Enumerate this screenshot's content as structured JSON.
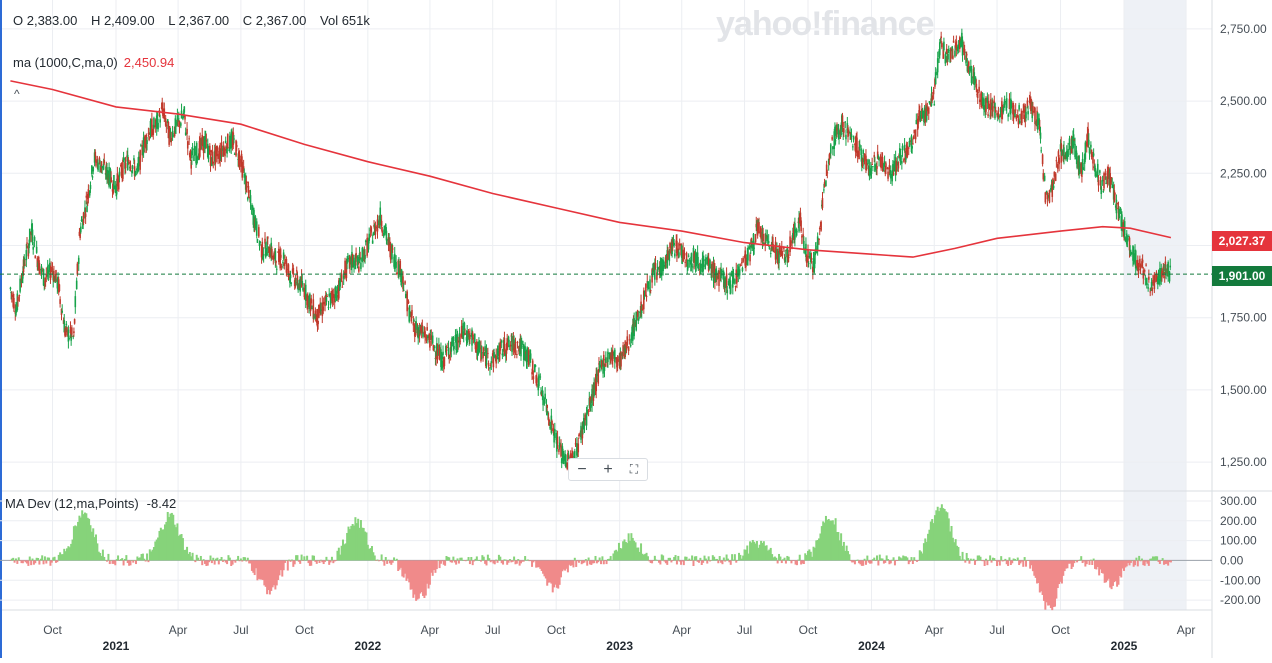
{
  "header": {
    "open": "O 2,383.00",
    "high": "H 2,409.00",
    "low": "L 2,367.00",
    "close": "C 2,367.00",
    "volume": "Vol 651k"
  },
  "watermark": "yahoo!finance",
  "ma_indicator": {
    "label": "ma (1000,C,ma,0)",
    "value": "2,450.94"
  },
  "madev_indicator": {
    "label": "MA Dev (12,ma,Points)",
    "value": "-8.42"
  },
  "badges": {
    "ma_value": "2,027.37",
    "last_close": "1,901.00"
  },
  "zoom_controls": {
    "zoom_out": "−",
    "zoom_in": "+",
    "fullscreen": "⛶"
  },
  "colors": {
    "up": "#17a34a",
    "down": "#c0392b",
    "ma_line": "#e5343c",
    "close_line": "#137a3c",
    "dev_up": "#86d37a",
    "dev_down": "#f08a8a",
    "shade": "#eef1f6"
  },
  "chart_data": [
    {
      "type": "line",
      "chart": "price",
      "x_unit": "date",
      "ylim": [
        1150,
        2850
      ],
      "yticks": [
        1250,
        1500,
        1750,
        2000,
        2250,
        2500,
        2750
      ],
      "ytick_labels": [
        "1,250.00",
        "1,500.00",
        "1,750.00",
        "",
        "2,250.00",
        "2,500.00",
        "2,750.00"
      ],
      "x_tick_labels": [
        "Oct",
        "Apr",
        "Jul",
        "Oct",
        "Apr",
        "Jul",
        "Oct",
        "Apr",
        "Jul",
        "Oct",
        "Apr",
        "Jul",
        "Oct",
        "Apr"
      ],
      "x_tick_dates": [
        "2020-10-01",
        "2021-04-01",
        "2021-07-01",
        "2021-10-01",
        "2022-04-01",
        "2022-07-01",
        "2022-10-01",
        "2023-04-01",
        "2023-07-01",
        "2023-10-01",
        "2024-04-01",
        "2024-07-01",
        "2024-10-01",
        "2025-04-01"
      ],
      "year_labels": [
        "2021",
        "2022",
        "2023",
        "2024",
        "2025"
      ],
      "year_dates": [
        "2021-01-01",
        "2022-01-01",
        "2023-01-01",
        "2024-01-01",
        "2025-01-01"
      ],
      "grid": true,
      "last_close": 1901,
      "series": [
        {
          "role": "price",
          "points": [
            [
              "2020-08-01",
              1850
            ],
            [
              "2020-08-10",
              1780
            ],
            [
              "2020-08-20",
              1920
            ],
            [
              "2020-09-01",
              2050
            ],
            [
              "2020-09-10",
              1950
            ],
            [
              "2020-09-20",
              1880
            ],
            [
              "2020-10-01",
              1920
            ],
            [
              "2020-10-10",
              1860
            ],
            [
              "2020-10-20",
              1700
            ],
            [
              "2020-11-01",
              1680
            ],
            [
              "2020-11-10",
              2050
            ],
            [
              "2020-11-20",
              2150
            ],
            [
              "2020-12-01",
              2300
            ],
            [
              "2020-12-10",
              2280
            ],
            [
              "2020-12-20",
              2250
            ],
            [
              "2021-01-01",
              2200
            ],
            [
              "2021-01-10",
              2260
            ],
            [
              "2021-01-20",
              2300
            ],
            [
              "2021-02-01",
              2250
            ],
            [
              "2021-02-10",
              2350
            ],
            [
              "2021-02-20",
              2400
            ],
            [
              "2021-03-01",
              2420
            ],
            [
              "2021-03-10",
              2470
            ],
            [
              "2021-03-20",
              2380
            ],
            [
              "2021-04-01",
              2420
            ],
            [
              "2021-04-10",
              2450
            ],
            [
              "2021-04-20",
              2300
            ],
            [
              "2021-05-01",
              2330
            ],
            [
              "2021-05-10",
              2360
            ],
            [
              "2021-05-20",
              2300
            ],
            [
              "2021-06-01",
              2320
            ],
            [
              "2021-06-10",
              2350
            ],
            [
              "2021-06-20",
              2360
            ],
            [
              "2021-07-01",
              2300
            ],
            [
              "2021-07-10",
              2200
            ],
            [
              "2021-07-20",
              2100
            ],
            [
              "2021-08-01",
              1980
            ],
            [
              "2021-08-10",
              2000
            ],
            [
              "2021-08-20",
              1950
            ],
            [
              "2021-09-01",
              1960
            ],
            [
              "2021-09-10",
              1900
            ],
            [
              "2021-09-20",
              1880
            ],
            [
              "2021-10-01",
              1850
            ],
            [
              "2021-10-10",
              1800
            ],
            [
              "2021-10-20",
              1750
            ],
            [
              "2021-11-01",
              1800
            ],
            [
              "2021-11-10",
              1820
            ],
            [
              "2021-11-20",
              1850
            ],
            [
              "2021-12-01",
              1920
            ],
            [
              "2021-12-10",
              1950
            ],
            [
              "2021-12-20",
              1940
            ],
            [
              "2022-01-01",
              2000
            ],
            [
              "2022-01-10",
              2050
            ],
            [
              "2022-01-20",
              2100
            ],
            [
              "2022-02-01",
              2000
            ],
            [
              "2022-02-10",
              1950
            ],
            [
              "2022-02-20",
              1900
            ],
            [
              "2022-03-01",
              1780
            ],
            [
              "2022-03-10",
              1720
            ],
            [
              "2022-03-20",
              1700
            ],
            [
              "2022-04-01",
              1680
            ],
            [
              "2022-04-10",
              1640
            ],
            [
              "2022-04-20",
              1600
            ],
            [
              "2022-05-01",
              1650
            ],
            [
              "2022-05-10",
              1660
            ],
            [
              "2022-05-20",
              1700
            ],
            [
              "2022-06-01",
              1680
            ],
            [
              "2022-06-10",
              1640
            ],
            [
              "2022-06-20",
              1620
            ],
            [
              "2022-07-01",
              1600
            ],
            [
              "2022-07-10",
              1630
            ],
            [
              "2022-07-20",
              1650
            ],
            [
              "2022-08-01",
              1660
            ],
            [
              "2022-08-10",
              1650
            ],
            [
              "2022-08-20",
              1620
            ],
            [
              "2022-09-01",
              1560
            ],
            [
              "2022-09-10",
              1500
            ],
            [
              "2022-09-20",
              1420
            ],
            [
              "2022-10-01",
              1330
            ],
            [
              "2022-10-10",
              1270
            ],
            [
              "2022-10-20",
              1250
            ],
            [
              "2022-11-01",
              1300
            ],
            [
              "2022-11-10",
              1380
            ],
            [
              "2022-11-20",
              1450
            ],
            [
              "2022-12-01",
              1550
            ],
            [
              "2022-12-10",
              1600
            ],
            [
              "2022-12-20",
              1620
            ],
            [
              "2023-01-01",
              1600
            ],
            [
              "2023-01-10",
              1640
            ],
            [
              "2023-01-20",
              1700
            ],
            [
              "2023-02-01",
              1780
            ],
            [
              "2023-02-10",
              1850
            ],
            [
              "2023-02-20",
              1900
            ],
            [
              "2023-03-01",
              1920
            ],
            [
              "2023-03-10",
              1950
            ],
            [
              "2023-03-20",
              2000
            ],
            [
              "2023-04-01",
              1980
            ],
            [
              "2023-04-10",
              1950
            ],
            [
              "2023-04-20",
              1960
            ],
            [
              "2023-05-01",
              1940
            ],
            [
              "2023-05-10",
              1930
            ],
            [
              "2023-05-20",
              1900
            ],
            [
              "2023-06-01",
              1880
            ],
            [
              "2023-06-10",
              1860
            ],
            [
              "2023-06-20",
              1900
            ],
            [
              "2023-07-01",
              1950
            ],
            [
              "2023-07-10",
              1980
            ],
            [
              "2023-07-20",
              2060
            ],
            [
              "2023-08-01",
              2010
            ],
            [
              "2023-08-10",
              2000
            ],
            [
              "2023-08-20",
              1970
            ],
            [
              "2023-09-01",
              1960
            ],
            [
              "2023-09-10",
              2040
            ],
            [
              "2023-09-20",
              2080
            ],
            [
              "2023-10-01",
              1960
            ],
            [
              "2023-10-10",
              1930
            ],
            [
              "2023-10-20",
              2080
            ],
            [
              "2023-11-01",
              2330
            ],
            [
              "2023-11-10",
              2380
            ],
            [
              "2023-11-20",
              2420
            ],
            [
              "2023-12-01",
              2380
            ],
            [
              "2023-12-10",
              2350
            ],
            [
              "2023-12-20",
              2300
            ],
            [
              "2024-01-01",
              2260
            ],
            [
              "2024-01-10",
              2300
            ],
            [
              "2024-01-20",
              2280
            ],
            [
              "2024-02-01",
              2250
            ],
            [
              "2024-02-10",
              2300
            ],
            [
              "2024-02-20",
              2320
            ],
            [
              "2024-03-01",
              2350
            ],
            [
              "2024-03-10",
              2450
            ],
            [
              "2024-03-20",
              2460
            ],
            [
              "2024-04-01",
              2520
            ],
            [
              "2024-04-10",
              2700
            ],
            [
              "2024-04-20",
              2650
            ],
            [
              "2024-05-01",
              2680
            ],
            [
              "2024-05-10",
              2720
            ],
            [
              "2024-05-20",
              2620
            ],
            [
              "2024-06-01",
              2560
            ],
            [
              "2024-06-10",
              2500
            ],
            [
              "2024-06-20",
              2480
            ],
            [
              "2024-07-01",
              2460
            ],
            [
              "2024-07-10",
              2470
            ],
            [
              "2024-07-20",
              2480
            ],
            [
              "2024-08-01",
              2450
            ],
            [
              "2024-08-10",
              2460
            ],
            [
              "2024-08-20",
              2480
            ],
            [
              "2024-09-01",
              2420
            ],
            [
              "2024-09-10",
              2160
            ],
            [
              "2024-09-20",
              2200
            ],
            [
              "2024-10-01",
              2320
            ],
            [
              "2024-10-10",
              2330
            ],
            [
              "2024-10-20",
              2350
            ],
            [
              "2024-11-01",
              2250
            ],
            [
              "2024-11-10",
              2380
            ],
            [
              "2024-11-20",
              2280
            ],
            [
              "2024-12-01",
              2200
            ],
            [
              "2024-12-10",
              2250
            ],
            [
              "2024-12-20",
              2150
            ],
            [
              "2025-01-01",
              2060
            ],
            [
              "2025-01-10",
              2000
            ],
            [
              "2025-01-20",
              1940
            ],
            [
              "2025-02-01",
              1910
            ],
            [
              "2025-02-10",
              1850
            ],
            [
              "2025-02-20",
              1890
            ],
            [
              "2025-03-01",
              1920
            ],
            [
              "2025-03-10",
              1901
            ]
          ]
        },
        {
          "role": "moving-average",
          "points": [
            [
              "2020-08-01",
              2570
            ],
            [
              "2020-10-01",
              2540
            ],
            [
              "2021-01-01",
              2480
            ],
            [
              "2021-04-01",
              2455
            ],
            [
              "2021-07-01",
              2420
            ],
            [
              "2021-10-01",
              2350
            ],
            [
              "2022-01-01",
              2290
            ],
            [
              "2022-04-01",
              2240
            ],
            [
              "2022-07-01",
              2180
            ],
            [
              "2022-10-01",
              2130
            ],
            [
              "2023-01-01",
              2080
            ],
            [
              "2023-04-01",
              2050
            ],
            [
              "2023-07-01",
              2010
            ],
            [
              "2023-10-01",
              1985
            ],
            [
              "2024-01-01",
              1970
            ],
            [
              "2024-03-01",
              1960
            ],
            [
              "2024-05-01",
              1990
            ],
            [
              "2024-07-01",
              2025
            ],
            [
              "2024-10-01",
              2050
            ],
            [
              "2024-12-01",
              2065
            ],
            [
              "2025-01-10",
              2060
            ],
            [
              "2025-03-10",
              2027.37
            ]
          ]
        }
      ]
    },
    {
      "type": "bar",
      "chart": "ma-deviation",
      "ylim": [
        -250,
        330
      ],
      "yticks": [
        -200,
        -100,
        0,
        100,
        200,
        300
      ],
      "ytick_labels": [
        "-200.00",
        "-100.00",
        "0.00",
        "100.00",
        "200.00",
        "300.00"
      ],
      "peaks": [
        [
          "2020-11-15",
          240
        ],
        [
          "2021-03-20",
          220
        ],
        [
          "2021-08-10",
          -150
        ],
        [
          "2021-12-15",
          200
        ],
        [
          "2022-03-15",
          -200
        ],
        [
          "2022-09-25",
          -140
        ],
        [
          "2023-01-15",
          120
        ],
        [
          "2023-07-20",
          90
        ],
        [
          "2023-11-01",
          230
        ],
        [
          "2024-04-10",
          280
        ],
        [
          "2024-09-15",
          -240
        ],
        [
          "2024-12-15",
          -120
        ]
      ]
    }
  ]
}
